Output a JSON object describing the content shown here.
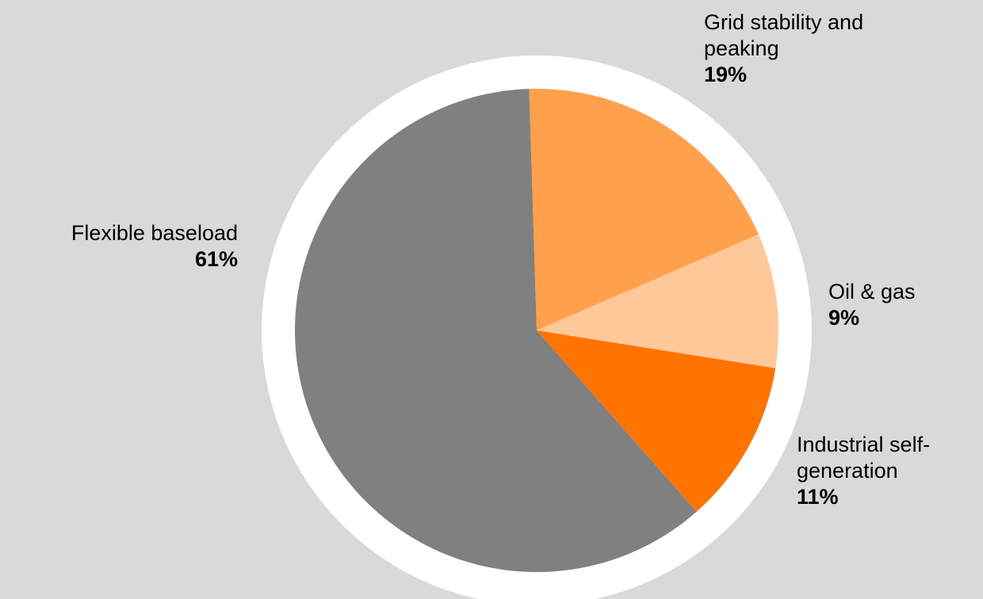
{
  "chart_data": {
    "type": "pie",
    "categories": [
      "Grid stability and peaking",
      "Oil & gas",
      "Industrial self-generation",
      "Flexible baseload"
    ],
    "values": [
      19,
      9,
      11,
      61
    ],
    "value_labels": [
      "19%",
      "9%",
      "11%",
      "61%"
    ],
    "colors": [
      "#ffa04d",
      "#ffc899",
      "#ff7300",
      "#808080"
    ]
  }
}
